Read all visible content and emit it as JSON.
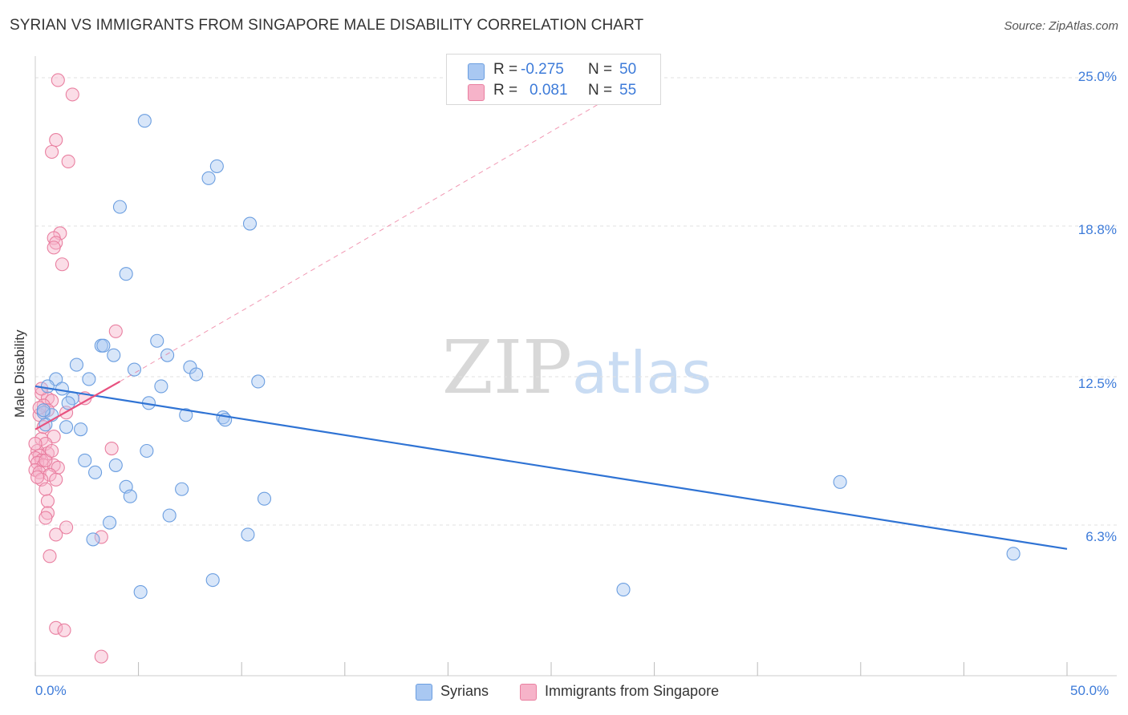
{
  "title": "SYRIAN VS IMMIGRANTS FROM SINGAPORE MALE DISABILITY CORRELATION CHART",
  "source": "Source: ZipAtlas.com",
  "watermark": {
    "zip": "ZIP",
    "atlas": "atlas"
  },
  "legend": {
    "rows": [
      {
        "r_label": "R =",
        "r_value": "-0.275",
        "n_label": "N =",
        "n_value": "50",
        "color": "#a9c8f2"
      },
      {
        "r_label": "R =",
        "r_value": "0.081",
        "n_label": "N =",
        "n_value": "55",
        "color": "#f6b3c9"
      }
    ]
  },
  "bottom_legend": {
    "syrians": "Syrians",
    "singapore": "Immigrants from Singapore"
  },
  "chart_data": {
    "type": "scatter",
    "title": "SYRIAN VS IMMIGRANTS FROM SINGAPORE MALE DISABILITY CORRELATION CHART",
    "xlabel": "",
    "ylabel": "Male Disability",
    "xlim": [
      0,
      50
    ],
    "ylim": [
      0,
      26
    ],
    "x_tick_labels": [
      "0.0%",
      "50.0%"
    ],
    "y_ticks": [
      {
        "value": 6.3,
        "label": "6.3%"
      },
      {
        "value": 12.5,
        "label": "12.5%"
      },
      {
        "value": 18.8,
        "label": "18.8%"
      },
      {
        "value": 25.0,
        "label": "25.0%"
      }
    ],
    "grid": true,
    "colors": {
      "syrians_fill": "#a9c8f2",
      "syrians_stroke": "#6b9ee0",
      "syrians_line": "#2f73d4",
      "singapore_fill": "#f6b3c9",
      "singapore_stroke": "#e97fa0",
      "singapore_line": "#e8517f"
    },
    "series": [
      {
        "name": "Syrians",
        "trend": {
          "x": [
            0,
            50
          ],
          "y": [
            12.1,
            5.3
          ],
          "style": "solid"
        },
        "points": [
          [
            5.3,
            23.2
          ],
          [
            8.4,
            20.8
          ],
          [
            8.8,
            21.3
          ],
          [
            4.1,
            19.6
          ],
          [
            10.4,
            18.9
          ],
          [
            4.4,
            16.8
          ],
          [
            5.9,
            14.0
          ],
          [
            3.2,
            13.8
          ],
          [
            3.3,
            13.8
          ],
          [
            3.8,
            13.4
          ],
          [
            6.4,
            13.4
          ],
          [
            2.0,
            13.0
          ],
          [
            4.8,
            12.8
          ],
          [
            7.5,
            12.9
          ],
          [
            7.8,
            12.6
          ],
          [
            10.8,
            12.3
          ],
          [
            1.0,
            12.4
          ],
          [
            2.6,
            12.4
          ],
          [
            0.6,
            12.1
          ],
          [
            1.3,
            12.0
          ],
          [
            6.1,
            12.1
          ],
          [
            1.8,
            11.6
          ],
          [
            1.6,
            11.4
          ],
          [
            5.5,
            11.4
          ],
          [
            0.4,
            11.0
          ],
          [
            0.8,
            10.9
          ],
          [
            7.3,
            10.9
          ],
          [
            9.1,
            10.8
          ],
          [
            9.2,
            10.7
          ],
          [
            0.5,
            10.5
          ],
          [
            1.5,
            10.4
          ],
          [
            2.2,
            10.3
          ],
          [
            5.4,
            9.4
          ],
          [
            2.4,
            9.0
          ],
          [
            3.9,
            8.8
          ],
          [
            2.9,
            8.5
          ],
          [
            4.4,
            7.9
          ],
          [
            7.1,
            7.8
          ],
          [
            4.6,
            7.5
          ],
          [
            11.1,
            7.4
          ],
          [
            39.0,
            8.1
          ],
          [
            6.5,
            6.7
          ],
          [
            3.6,
            6.4
          ],
          [
            2.8,
            5.7
          ],
          [
            10.3,
            5.9
          ],
          [
            47.4,
            5.1
          ],
          [
            8.6,
            4.0
          ],
          [
            5.1,
            3.5
          ],
          [
            28.5,
            3.6
          ],
          [
            0.4,
            11.1
          ]
        ]
      },
      {
        "name": "Immigrants from Singapore",
        "trend_solid": {
          "x": [
            0,
            4.1
          ],
          "y": [
            10.3,
            12.3
          ],
          "style": "solid"
        },
        "trend_dashed": {
          "x": [
            4.1,
            27.5
          ],
          "y": [
            12.3,
            24.0
          ],
          "style": "dashed"
        },
        "points": [
          [
            1.1,
            24.9
          ],
          [
            1.8,
            24.3
          ],
          [
            1.0,
            22.4
          ],
          [
            0.8,
            21.9
          ],
          [
            1.6,
            21.5
          ],
          [
            1.2,
            18.5
          ],
          [
            0.9,
            18.3
          ],
          [
            1.0,
            18.1
          ],
          [
            0.9,
            17.9
          ],
          [
            1.3,
            17.2
          ],
          [
            3.9,
            14.4
          ],
          [
            0.3,
            11.8
          ],
          [
            0.6,
            11.6
          ],
          [
            0.8,
            11.5
          ],
          [
            0.4,
            11.3
          ],
          [
            0.6,
            11.1
          ],
          [
            1.5,
            11.0
          ],
          [
            2.4,
            11.6
          ],
          [
            0.2,
            10.9
          ],
          [
            0.9,
            10.0
          ],
          [
            0.3,
            9.9
          ],
          [
            0.5,
            9.7
          ],
          [
            3.7,
            9.5
          ],
          [
            0.1,
            9.4
          ],
          [
            0.6,
            9.3
          ],
          [
            0.2,
            9.2
          ],
          [
            0.0,
            9.1
          ],
          [
            0.3,
            9.0
          ],
          [
            0.1,
            8.9
          ],
          [
            0.4,
            8.8
          ],
          [
            0.9,
            8.8
          ],
          [
            1.1,
            8.7
          ],
          [
            0.0,
            8.6
          ],
          [
            0.2,
            8.5
          ],
          [
            0.7,
            8.4
          ],
          [
            0.3,
            8.2
          ],
          [
            1.0,
            8.2
          ],
          [
            0.5,
            7.8
          ],
          [
            0.6,
            7.3
          ],
          [
            0.6,
            6.8
          ],
          [
            0.5,
            6.6
          ],
          [
            1.5,
            6.2
          ],
          [
            1.0,
            5.9
          ],
          [
            3.2,
            5.8
          ],
          [
            0.7,
            5.0
          ],
          [
            1.0,
            2.0
          ],
          [
            1.4,
            1.9
          ],
          [
            3.2,
            0.8
          ],
          [
            0.0,
            9.7
          ],
          [
            0.4,
            10.4
          ],
          [
            0.2,
            11.2
          ],
          [
            0.5,
            9.0
          ],
          [
            0.8,
            9.4
          ],
          [
            0.1,
            8.3
          ],
          [
            0.3,
            12.0
          ]
        ]
      }
    ]
  }
}
